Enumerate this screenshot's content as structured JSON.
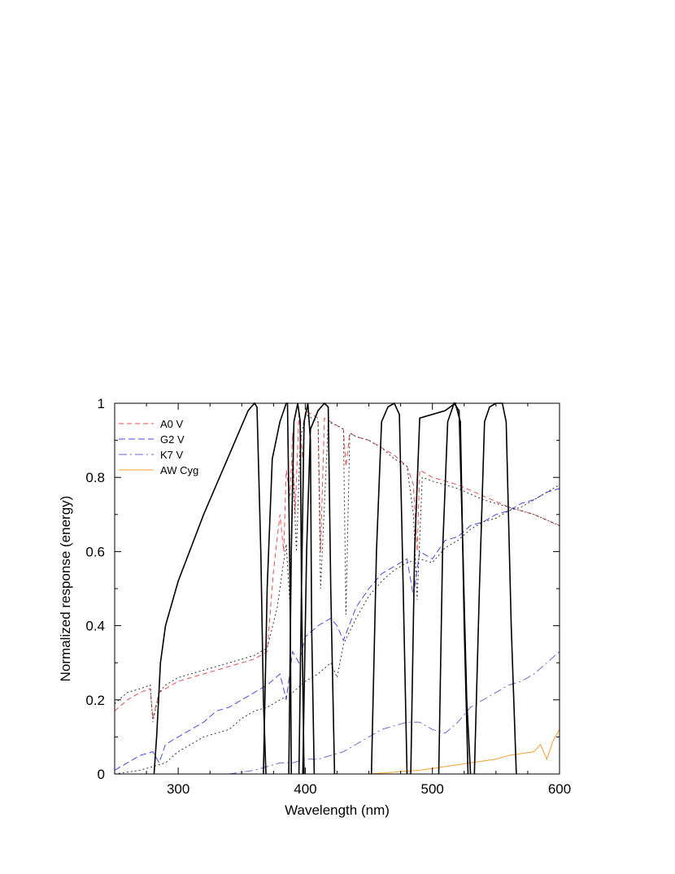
{
  "chart_data": {
    "type": "line",
    "xlabel": "Wavelength (nm)",
    "ylabel": "Normalized response (energy)",
    "xlim": [
      250,
      600
    ],
    "ylim": [
      0,
      1
    ],
    "xticks": [
      "300",
      "400",
      "500",
      "600"
    ],
    "yticks": [
      "0",
      "0.2",
      "0.4",
      "0.6",
      "0.8",
      "1"
    ],
    "legend": {
      "placement": "top-left",
      "entries": [
        {
          "label": "A0 V",
          "color": "#e05050",
          "dash": "6,4"
        },
        {
          "label": "G2 V",
          "color": "#4a4ae0",
          "dash": "8,4"
        },
        {
          "label": "K7 V",
          "color": "#6a6ad0",
          "dash": "10,4,2,4"
        },
        {
          "label": "AW Cyg",
          "color": "#f0a030",
          "dash": ""
        }
      ]
    },
    "series": [
      {
        "name": "A0 V",
        "color": "#e05050",
        "dash": "6,4",
        "x": [
          250,
          260,
          270,
          278,
          280,
          285,
          290,
          300,
          320,
          340,
          360,
          370,
          375,
          380,
          383,
          385,
          388,
          390,
          392,
          395,
          398,
          400,
          405,
          410,
          412,
          415,
          420,
          425,
          430,
          432,
          435,
          440,
          450,
          460,
          470,
          480,
          485,
          488,
          490,
          500,
          520,
          540,
          560,
          580,
          600
        ],
        "y": [
          0.17,
          0.2,
          0.22,
          0.23,
          0.15,
          0.22,
          0.23,
          0.25,
          0.27,
          0.29,
          0.31,
          0.33,
          0.55,
          0.7,
          0.6,
          0.82,
          0.75,
          0.92,
          0.7,
          0.97,
          0.85,
          0.98,
          0.97,
          0.96,
          0.6,
          0.96,
          0.95,
          0.94,
          0.93,
          0.83,
          0.92,
          0.91,
          0.9,
          0.88,
          0.86,
          0.83,
          0.78,
          0.6,
          0.82,
          0.8,
          0.78,
          0.75,
          0.72,
          0.7,
          0.67
        ]
      },
      {
        "name": "G2 V",
        "color": "#4a4ae0",
        "dash": "8,4",
        "x": [
          250,
          260,
          270,
          280,
          285,
          290,
          300,
          310,
          320,
          330,
          340,
          350,
          360,
          370,
          380,
          385,
          390,
          395,
          400,
          410,
          420,
          425,
          430,
          440,
          450,
          460,
          470,
          480,
          485,
          490,
          500,
          510,
          520,
          530,
          540,
          550,
          560,
          570,
          580,
          590,
          600
        ],
        "y": [
          0.01,
          0.03,
          0.05,
          0.06,
          0.03,
          0.08,
          0.1,
          0.12,
          0.14,
          0.17,
          0.18,
          0.2,
          0.22,
          0.24,
          0.27,
          0.2,
          0.33,
          0.3,
          0.37,
          0.4,
          0.42,
          0.4,
          0.36,
          0.45,
          0.5,
          0.54,
          0.56,
          0.58,
          0.48,
          0.6,
          0.58,
          0.63,
          0.64,
          0.67,
          0.68,
          0.7,
          0.71,
          0.73,
          0.74,
          0.76,
          0.77
        ]
      },
      {
        "name": "K7 V",
        "color": "#6a6ad0",
        "dash": "10,4,2,4",
        "x": [
          250,
          270,
          290,
          310,
          320,
          330,
          340,
          350,
          360,
          370,
          380,
          390,
          400,
          410,
          420,
          430,
          440,
          450,
          460,
          470,
          480,
          490,
          500,
          510,
          520,
          530,
          540,
          550,
          560,
          570,
          580,
          590,
          600
        ],
        "y": [
          0.0,
          0.0,
          0.0,
          0.0,
          0.0,
          0.0,
          0.0,
          0.005,
          0.01,
          0.02,
          0.03,
          0.03,
          0.04,
          0.04,
          0.05,
          0.06,
          0.08,
          0.1,
          0.12,
          0.13,
          0.14,
          0.14,
          0.12,
          0.11,
          0.14,
          0.18,
          0.2,
          0.22,
          0.24,
          0.25,
          0.27,
          0.3,
          0.33
        ]
      },
      {
        "name": "AW Cyg",
        "color": "#f0a030",
        "dash": "",
        "x": [
          450,
          470,
          480,
          490,
          500,
          510,
          520,
          530,
          540,
          550,
          560,
          570,
          580,
          585,
          590,
          595,
          600
        ],
        "y": [
          0.0,
          0.005,
          0.008,
          0.01,
          0.015,
          0.02,
          0.025,
          0.03,
          0.035,
          0.04,
          0.05,
          0.055,
          0.06,
          0.08,
          0.04,
          0.09,
          0.12
        ]
      },
      {
        "name": "",
        "color": "#333333",
        "dash": "2,3",
        "x": [
          250,
          260,
          270,
          278,
          280,
          285,
          290,
          300,
          320,
          340,
          360,
          370,
          378,
          382,
          385,
          388,
          390,
          393,
          396,
          400,
          405,
          410,
          412,
          418,
          425,
          430,
          432,
          435,
          440,
          450,
          460,
          470,
          480,
          485,
          488,
          492,
          500,
          520,
          540,
          560,
          580,
          600
        ],
        "y": [
          0.19,
          0.22,
          0.23,
          0.24,
          0.14,
          0.22,
          0.24,
          0.26,
          0.28,
          0.3,
          0.32,
          0.34,
          0.45,
          0.55,
          0.62,
          0.45,
          0.85,
          0.6,
          0.9,
          0.97,
          0.96,
          0.95,
          0.5,
          0.95,
          0.94,
          0.93,
          0.43,
          0.92,
          0.91,
          0.9,
          0.88,
          0.85,
          0.83,
          0.7,
          0.47,
          0.8,
          0.79,
          0.77,
          0.74,
          0.72,
          0.7,
          0.67
        ]
      },
      {
        "name": "",
        "color": "#333333",
        "dash": "2,3",
        "x": [
          250,
          270,
          290,
          300,
          310,
          320,
          330,
          340,
          350,
          360,
          370,
          380,
          390,
          400,
          410,
          420,
          425,
          430,
          440,
          450,
          460,
          470,
          480,
          490,
          500,
          510,
          520,
          530,
          540,
          550,
          560,
          570,
          580,
          590,
          600
        ],
        "y": [
          0.0,
          0.01,
          0.03,
          0.06,
          0.08,
          0.1,
          0.11,
          0.12,
          0.15,
          0.17,
          0.18,
          0.2,
          0.22,
          0.25,
          0.27,
          0.3,
          0.26,
          0.35,
          0.42,
          0.48,
          0.52,
          0.55,
          0.57,
          0.58,
          0.57,
          0.61,
          0.63,
          0.66,
          0.68,
          0.69,
          0.71,
          0.72,
          0.74,
          0.76,
          0.78
        ]
      },
      {
        "name": "",
        "color": "#000000",
        "dash": "",
        "width": 1.6,
        "x": [
          281,
          283,
          286,
          290,
          300,
          320,
          340,
          355,
          360,
          362,
          365,
          367,
          369
        ],
        "y": [
          0.0,
          0.1,
          0.3,
          0.4,
          0.52,
          0.7,
          0.86,
          0.98,
          1.0,
          0.99,
          0.6,
          0.2,
          0.0
        ]
      },
      {
        "name": "",
        "color": "#000000",
        "dash": "",
        "width": 1.6,
        "x": [
          367,
          370,
          374,
          380,
          385,
          386,
          388,
          389
        ],
        "y": [
          0.0,
          0.5,
          0.85,
          0.95,
          1.0,
          1.0,
          0.5,
          0.0
        ]
      },
      {
        "name": "",
        "color": "#000000",
        "dash": "",
        "width": 1.6,
        "x": [
          387,
          389,
          391,
          394,
          396,
          397,
          399
        ],
        "y": [
          0.0,
          0.6,
          0.95,
          1.0,
          0.95,
          0.5,
          0.0
        ]
      },
      {
        "name": "",
        "color": "#000000",
        "dash": "",
        "width": 1.6,
        "x": [
          395,
          397,
          399,
          402,
          404,
          405,
          407
        ],
        "y": [
          0.0,
          0.5,
          0.95,
          1.0,
          0.9,
          0.4,
          0.0
        ]
      },
      {
        "name": "",
        "color": "#000000",
        "dash": "",
        "width": 1.6,
        "x": [
          398,
          401,
          404,
          410,
          415,
          418,
          420,
          423
        ],
        "y": [
          0.0,
          0.6,
          0.93,
          0.98,
          1.0,
          0.99,
          0.5,
          0.0
        ]
      },
      {
        "name": "",
        "color": "#000000",
        "dash": "",
        "width": 1.6,
        "x": [
          452,
          456,
          460,
          465,
          470,
          474,
          477,
          480
        ],
        "y": [
          0.0,
          0.6,
          0.95,
          0.99,
          1.0,
          0.97,
          0.5,
          0.0
        ]
      },
      {
        "name": "",
        "color": "#000000",
        "dash": "",
        "width": 1.6,
        "x": [
          483,
          486,
          490,
          500,
          510,
          518,
          522,
          525,
          528
        ],
        "y": [
          0.0,
          0.6,
          0.96,
          0.97,
          0.98,
          1.0,
          0.95,
          0.4,
          0.0
        ]
      },
      {
        "name": "",
        "color": "#000000",
        "dash": "",
        "width": 1.6,
        "x": [
          505,
          508,
          512,
          517,
          521,
          524,
          527,
          530
        ],
        "y": [
          0.0,
          0.6,
          0.95,
          1.0,
          0.98,
          0.6,
          0.2,
          0.0
        ]
      },
      {
        "name": "",
        "color": "#000000",
        "dash": "",
        "width": 1.6,
        "x": [
          533,
          537,
          541,
          545,
          550,
          555,
          558,
          562,
          566
        ],
        "y": [
          0.0,
          0.5,
          0.95,
          0.99,
          1.0,
          1.0,
          0.95,
          0.4,
          0.0
        ]
      }
    ]
  }
}
